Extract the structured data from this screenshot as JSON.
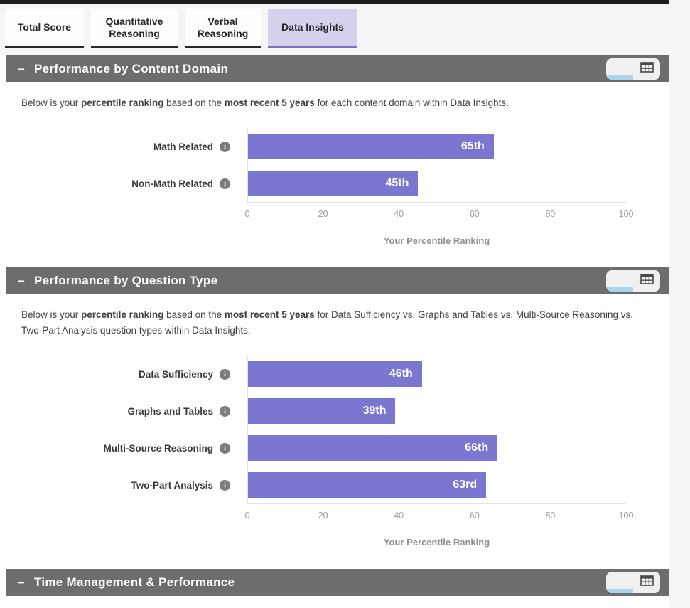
{
  "tabs": [
    {
      "label": "Total Score",
      "active": false
    },
    {
      "label": "Quantitative Reasoning",
      "active": false
    },
    {
      "label": "Verbal Reasoning",
      "active": false
    },
    {
      "label": "Data Insights",
      "active": true
    }
  ],
  "icons": {
    "collapse": "−",
    "info": "i",
    "chart_view": "bar-chart-icon",
    "table_view": "table-grid-icon"
  },
  "colors": {
    "bar_purple": "#7b76cf",
    "active_tab_bg": "#d6d2ee",
    "active_tab_border": "#7a72c9",
    "section_header_bg": "#6d6d6d",
    "chart_toggle_active_bg": "#a9d6ee",
    "tab_underline": "#272727"
  },
  "sections": [
    {
      "title": "Performance by Content Domain",
      "description": [
        {
          "text": "Below is your "
        },
        {
          "text": "percentile ranking",
          "bold": true
        },
        {
          "text": " based on the "
        },
        {
          "text": "most recent 5 years",
          "bold": true
        },
        {
          "text": " for each content domain within Data Insights."
        }
      ]
    },
    {
      "title": "Performance by Question Type",
      "description": [
        {
          "text": "Below is your "
        },
        {
          "text": "percentile ranking",
          "bold": true
        },
        {
          "text": " based on the "
        },
        {
          "text": "most recent 5 years",
          "bold": true
        },
        {
          "text": " for Data Sufficiency vs. Graphs and Tables vs. Multi-Source Reasoning vs. Two-Part Analysis question types within Data Insights."
        }
      ]
    },
    {
      "title": "Time Management & Performance"
    }
  ],
  "chart_data": [
    {
      "type": "bar",
      "orientation": "horizontal",
      "title": "Performance by Content Domain",
      "categories": [
        "Math Related",
        "Non-Math Related"
      ],
      "values": [
        65,
        45
      ],
      "value_labels": [
        "65th",
        "45th"
      ],
      "xlabel": "Your Percentile Ranking",
      "xlim": [
        0,
        100
      ],
      "x_ticks": [
        0,
        20,
        40,
        60,
        80,
        100
      ],
      "bar_color": "#7b76cf",
      "grid": false,
      "legend": false
    },
    {
      "type": "bar",
      "orientation": "horizontal",
      "title": "Performance by Question Type",
      "categories": [
        "Data Sufficiency",
        "Graphs and Tables",
        "Multi-Source Reasoning",
        "Two-Part Analysis"
      ],
      "values": [
        46,
        39,
        66,
        63
      ],
      "value_labels": [
        "46th",
        "39th",
        "66th",
        "63rd"
      ],
      "xlabel": "Your Percentile Ranking",
      "xlim": [
        0,
        100
      ],
      "x_ticks": [
        0,
        20,
        40,
        60,
        80,
        100
      ],
      "bar_color": "#7b76cf",
      "grid": false,
      "legend": false
    }
  ]
}
